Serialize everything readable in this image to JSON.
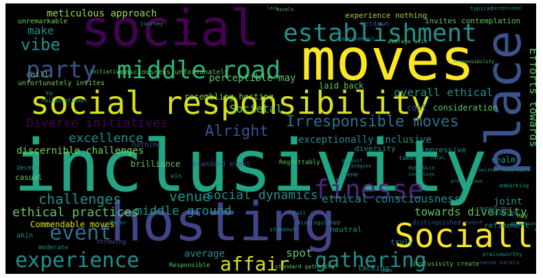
{
  "colors": {
    "background": "#000000",
    "yellow": "#fde725",
    "green": "#5ec962",
    "teal": "#21918c",
    "teal_light": "#2db27d",
    "blue": "#3b528b",
    "indigo": "#414487",
    "purple": "#440154"
  },
  "words": {
    "inclusivity": "inclusivity",
    "hosting": "hosting",
    "moves": "moves",
    "social": "social",
    "social_responsibility": "social responsibility",
    "place": "place",
    "establishment": "establishment",
    "middle_road": "middle road",
    "party": "party",
    "socially": "Socially",
    "finesse": "finesse",
    "experience": "experience",
    "gathering": "gathering",
    "event": "event",
    "affair": "affair",
    "vibe": "vibe",
    "alright": "Alright",
    "irresponsible_moves": "Irresponsible moves",
    "diverse_initiatives": "Diverse initiatives",
    "excellence": "excellence",
    "challenges": "challenges",
    "venue": "venue",
    "social_dynamics": "social dynamics",
    "middle_ground": "middle ground",
    "ethical_practices": "ethical practices",
    "ethical_consciousness": "ethical consciousness",
    "towards_diversity": "towards diversity",
    "efforts_towards": "Efforts towards",
    "overall_ethical": "overall ethical",
    "meticulous_approach": "meticulous approach",
    "make": "make",
    "perceptible_may": "perceptible may",
    "societal": "Societal",
    "resembling_hosting": "resembling hosting",
    "laid_back": "laid back",
    "exceptionally_inclusive": "exceptionally inclusive",
    "discernible_challenges": "discernible challenges",
    "commendable_moves": "Commendable moves",
    "spot": "spot",
    "average": "average",
    "joint": "joint",
    "consciousness_unfortunately": "consciousness unfortunately",
    "unremarkable": "unremarkable",
    "experience_nothing": "experience nothing",
    "invites_contemplation": "invites contemplation",
    "letdown": "letdown",
    "unfortunately_invites": "unfortunately invites",
    "cool": "cool",
    "consideration": "consideration",
    "initiatives": "initiatives",
    "chill": "chill",
    "standard_event": "standard event",
    "brilliance": "brilliance",
    "nothing": "nothing",
    "realm": "realm",
    "diversity": "diversity",
    "impressive": "impressive",
    "refinement": "refinement",
    "regrettably": "Regrettably",
    "takes": "takes",
    "scene": "scene",
    "casual": "casual",
    "decent": "decent",
    "win": "win",
    "akin": "akin",
    "throwing": "throwing",
    "moderate": "moderate",
    "neutral": "neutral",
    "truly": "truly",
    "responsible": "Responsible",
    "lacking": "lacking",
    "standard_gathering": "standard gathering",
    "inclusivity_create": "inclusivity create",
    "venue_excels": "venue excels",
    "praiseworthy": "praiseworthy",
    "distinguished_event": "distinguished event",
    "balanced": "balanced",
    "attention": "attention",
    "hey": "Hey",
    "distinguished": "distinguished",
    "fail": "fail",
    "major": "Major",
    "standout": "standout",
    "neither_remarkable": "neither remarkable",
    "embarking": "embarking",
    "journey": "journey",
    "average_akin": "average akin",
    "improvement": "improvement",
    "lack": "lack",
    "excels": "excels",
    "typical": "typical",
    "exceptional": "exceptional",
    "failed_attempt": "failed attempt",
    "yo": "Yo",
    "responsibility": "Responsibility",
    "noteworthy": "Noteworthy",
    "strategies": "strategies",
    "pursuit": "pursuit",
    "dynamics": "dynamics",
    "inclusive": "inclusive",
    "prestigious": "prestigious",
    "total": "Total",
    "game": "game"
  }
}
